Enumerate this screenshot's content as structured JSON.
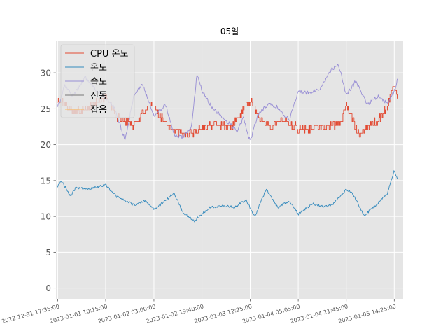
{
  "chart_data": {
    "type": "line",
    "title": "05일",
    "xlabel": "",
    "ylabel": "",
    "ylim": [
      -1.5,
      34.5
    ],
    "yticks": [
      0,
      5,
      10,
      15,
      20,
      25,
      30
    ],
    "xlim": [
      "2022-12-31 17:00:00",
      "2023-01-05 17:30:00"
    ],
    "xticks": [
      "2022-12-31 17:35:00",
      "2023-01-01 10:15:00",
      "2023-01-02 03:00:00",
      "2023-01-02 19:40:00",
      "2023-01-03 12:25:00",
      "2023-01-04 05:05:00",
      "2023-01-04 21:45:00",
      "2023-01-05 14:25:00"
    ],
    "grid": true,
    "legend_position": "top-left",
    "x_range": [
      "2022-12-31 17:35:00",
      "2023-01-05 15:40:00"
    ],
    "series": [
      {
        "name": "CPU 온도",
        "color": "#E24A33",
        "step_size": 0.54,
        "x": [
          "2022-12-31 17:35:00",
          "2023-01-01 00:00:00",
          "2023-01-01 06:00:00",
          "2023-01-01 10:15:00",
          "2023-01-01 14:00:00",
          "2023-01-01 20:00:00",
          "2023-01-02 00:00:00",
          "2023-01-02 03:00:00",
          "2023-01-02 06:00:00",
          "2023-01-02 10:00:00",
          "2023-01-02 14:00:00",
          "2023-01-02 19:40:00",
          "2023-01-03 00:00:00",
          "2023-01-03 06:00:00",
          "2023-01-03 12:25:00",
          "2023-01-03 16:00:00",
          "2023-01-03 20:00:00",
          "2023-01-04 00:00:00",
          "2023-01-04 05:05:00",
          "2023-01-04 10:00:00",
          "2023-01-04 16:00:00",
          "2023-01-04 20:00:00",
          "2023-01-04 21:45:00",
          "2023-01-05 02:00:00",
          "2023-01-05 08:00:00",
          "2023-01-05 12:00:00",
          "2023-01-05 14:25:00",
          "2023-01-05 15:40:00"
        ],
        "values": [
          26.2,
          24.6,
          25.6,
          26.8,
          23.8,
          22.8,
          24.8,
          25.4,
          23.6,
          22.0,
          21.2,
          22.4,
          22.8,
          22.6,
          26.0,
          23.6,
          22.6,
          23.6,
          22.2,
          22.4,
          22.6,
          23.2,
          25.6,
          21.6,
          23.2,
          25.2,
          28.6,
          26.6
        ]
      },
      {
        "name": "온도",
        "color": "#348ABD",
        "x": [
          "2022-12-31 17:35:00",
          "2022-12-31 19:00:00",
          "2022-12-31 22:00:00",
          "2023-01-01 00:00:00",
          "2023-01-01 04:00:00",
          "2023-01-01 08:00:00",
          "2023-01-01 10:15:00",
          "2023-01-01 14:00:00",
          "2023-01-01 20:00:00",
          "2023-01-02 00:00:00",
          "2023-01-02 03:00:00",
          "2023-01-02 07:00:00",
          "2023-01-02 10:00:00",
          "2023-01-02 13:00:00",
          "2023-01-02 15:00:00",
          "2023-01-02 17:00:00",
          "2023-01-02 19:40:00",
          "2023-01-02 22:00:00",
          "2023-01-03 03:00:00",
          "2023-01-03 07:00:00",
          "2023-01-03 11:00:00",
          "2023-01-03 14:00:00",
          "2023-01-03 18:00:00",
          "2023-01-03 22:00:00",
          "2023-01-04 02:00:00",
          "2023-01-04 05:05:00",
          "2023-01-04 10:00:00",
          "2023-01-04 14:00:00",
          "2023-01-04 17:00:00",
          "2023-01-04 21:45:00",
          "2023-01-05 00:00:00",
          "2023-01-05 04:00:00",
          "2023-01-05 08:00:00",
          "2023-01-05 12:00:00",
          "2023-01-05 14:25:00",
          "2023-01-05 15:40:00"
        ],
        "values": [
          14.2,
          14.9,
          12.9,
          14.0,
          13.8,
          14.2,
          14.4,
          12.8,
          11.6,
          12.2,
          11.0,
          12.2,
          13.3,
          10.6,
          10.0,
          9.4,
          10.3,
          11.2,
          11.5,
          11.3,
          12.3,
          10.0,
          13.8,
          11.2,
          12.2,
          10.3,
          11.8,
          11.4,
          11.6,
          13.8,
          13.2,
          10.1,
          11.6,
          13.2,
          16.5,
          15.1
        ]
      },
      {
        "name": "습도",
        "color": "#988ED5",
        "x": [
          "2022-12-31 17:35:00",
          "2022-12-31 20:00:00",
          "2022-12-31 23:00:00",
          "2023-01-01 03:00:00",
          "2023-01-01 07:00:00",
          "2023-01-01 10:15:00",
          "2023-01-01 13:00:00",
          "2023-01-01 17:00:00",
          "2023-01-01 20:00:00",
          "2023-01-01 23:00:00",
          "2023-01-02 03:00:00",
          "2023-01-02 07:00:00",
          "2023-01-02 10:00:00",
          "2023-01-02 13:00:00",
          "2023-01-02 16:00:00",
          "2023-01-02 18:00:00",
          "2023-01-02 19:40:00",
          "2023-01-02 23:00:00",
          "2023-01-03 04:00:00",
          "2023-01-03 08:00:00",
          "2023-01-03 10:00:00",
          "2023-01-03 12:25:00",
          "2023-01-03 15:00:00",
          "2023-01-03 19:00:00",
          "2023-01-03 22:00:00",
          "2023-01-04 02:00:00",
          "2023-01-04 05:05:00",
          "2023-01-04 09:00:00",
          "2023-01-04 13:00:00",
          "2023-01-04 16:00:00",
          "2023-01-04 19:00:00",
          "2023-01-04 21:45:00",
          "2023-01-05 01:00:00",
          "2023-01-05 05:00:00",
          "2023-01-05 09:00:00",
          "2023-01-05 12:00:00",
          "2023-01-05 14:25:00",
          "2023-01-05 15:40:00"
        ],
        "values": [
          25.2,
          28.2,
          26.8,
          29.4,
          27.6,
          26.6,
          25.4,
          20.6,
          26.8,
          28.4,
          24.0,
          25.6,
          21.4,
          21.0,
          22.5,
          30.0,
          27.6,
          25.2,
          23.4,
          21.8,
          23.8,
          20.4,
          24.2,
          25.8,
          25.2,
          23.4,
          27.4,
          27.2,
          27.8,
          30.2,
          31.2,
          27.0,
          28.8,
          25.6,
          26.8,
          25.8,
          27.4,
          29.2
        ]
      },
      {
        "name": "진동",
        "color": "#777777",
        "x": [
          "2022-12-31 17:35:00",
          "2023-01-05 15:40:00"
        ],
        "values": [
          0,
          0
        ]
      },
      {
        "name": "잡음",
        "color": "#FBC15E",
        "x": [
          "2022-12-31 17:35:00",
          "2023-01-05 15:40:00"
        ],
        "values": [
          0,
          0
        ]
      }
    ]
  }
}
